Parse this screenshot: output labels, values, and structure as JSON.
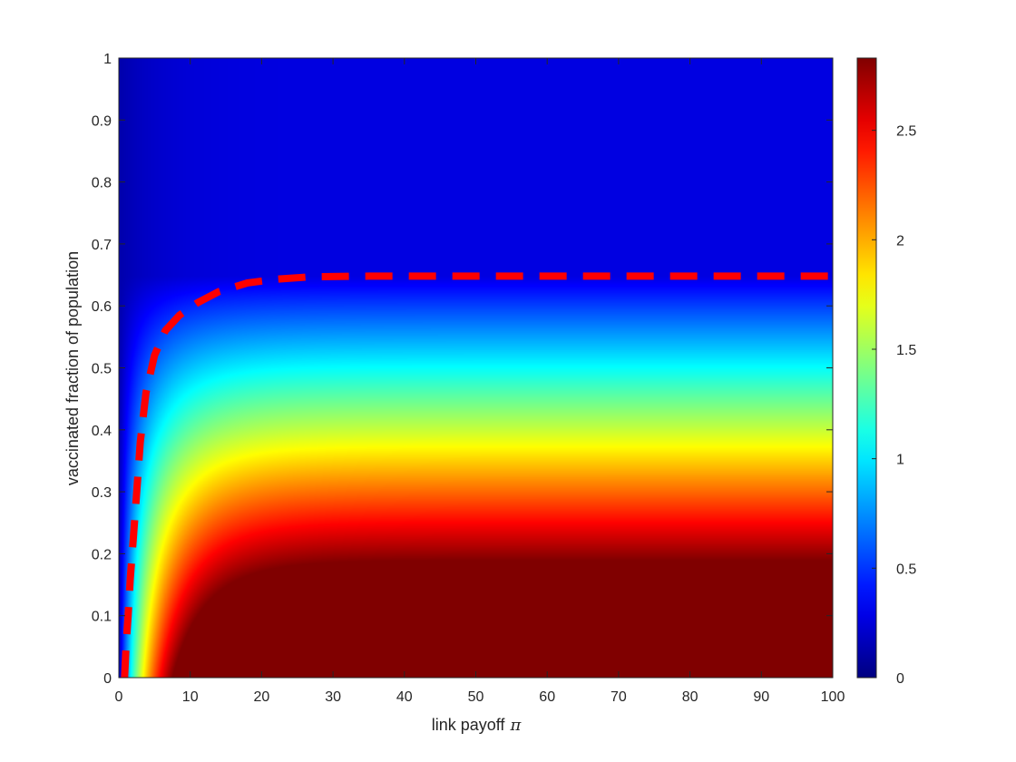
{
  "chart_data": {
    "type": "heatmap",
    "xlabel": "link payoff",
    "xlabel_symbol": "π",
    "ylabel": "vaccinated fraction of population",
    "xlim": [
      0,
      100
    ],
    "ylim": [
      0,
      1
    ],
    "x_ticks": [
      "0",
      "10",
      "20",
      "30",
      "40",
      "50",
      "60",
      "70",
      "80",
      "90",
      "100"
    ],
    "y_ticks": [
      "0",
      "0.1",
      "0.2",
      "0.3",
      "0.4",
      "0.5",
      "0.6",
      "0.7",
      "0.8",
      "0.9",
      "1"
    ],
    "colormap": "jet",
    "colorbar": {
      "range": [
        0,
        2.83
      ],
      "ticks": [
        "0",
        "0.5",
        "1",
        "1.5",
        "2",
        "2.5"
      ]
    },
    "threshold_curve": {
      "color": "#ff0000",
      "style": "dashed",
      "points": [
        [
          0.8,
          0.0
        ],
        [
          1.0,
          0.05
        ],
        [
          1.3,
          0.1
        ],
        [
          1.6,
          0.16
        ],
        [
          2.0,
          0.22
        ],
        [
          2.5,
          0.3
        ],
        [
          3.0,
          0.38
        ],
        [
          3.8,
          0.46
        ],
        [
          5.0,
          0.52
        ],
        [
          6.5,
          0.56
        ],
        [
          8.5,
          0.585
        ],
        [
          11,
          0.605
        ],
        [
          14,
          0.623
        ],
        [
          18,
          0.637
        ],
        [
          22,
          0.643
        ],
        [
          27,
          0.647
        ],
        [
          35,
          0.648
        ],
        [
          50,
          0.648
        ],
        [
          70,
          0.648
        ],
        [
          100,
          0.648
        ]
      ]
    }
  }
}
